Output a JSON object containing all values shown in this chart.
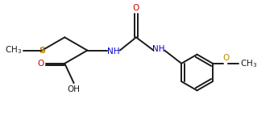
{
  "bg_color": "#ffffff",
  "line_color": "#1a1a1a",
  "o_color": "#cc0000",
  "n_color": "#0000cc",
  "s_color": "#bb8800",
  "bond_lw": 1.4,
  "font_size": 7.5,
  "xlim": [
    0,
    9.5
  ],
  "ylim": [
    0,
    4.2
  ]
}
